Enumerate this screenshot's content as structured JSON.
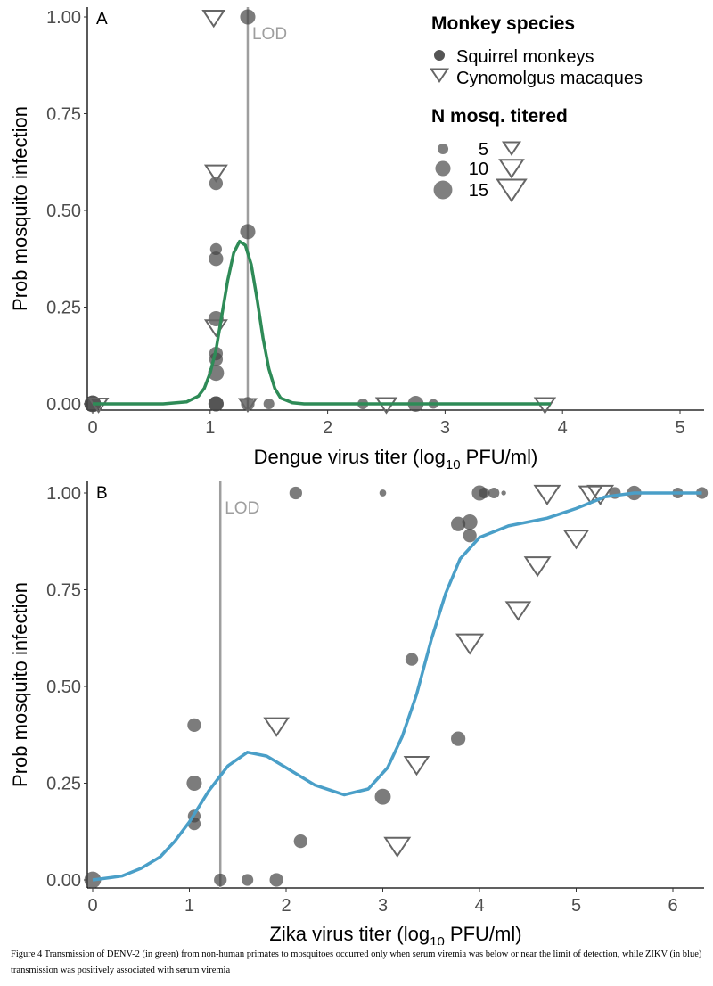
{
  "chart_data": [
    {
      "type": "scatter",
      "panel": "A",
      "xlabel": "Dengue virus titer (log",
      "xlabel_sub": "10",
      "xlabel_tail": " PFU/ml)",
      "ylabel": "Prob mosquito infection",
      "xlim": [
        0,
        5.3
      ],
      "ylim": [
        0,
        1
      ],
      "xticks": [
        0,
        1,
        2,
        3,
        4,
        5
      ],
      "xtick_labels": [
        "0",
        "1",
        "2",
        "3",
        "4",
        "5"
      ],
      "yticks": [
        0,
        0.25,
        0.5,
        0.75,
        1
      ],
      "ytick_labels": [
        "0.00",
        "0.25",
        "0.50",
        "0.75",
        "1.00"
      ],
      "lod": {
        "x": 1.32,
        "label": "LOD"
      },
      "curve_color": "#2e8b57",
      "curve": [
        [
          0,
          0
        ],
        [
          0.6,
          0
        ],
        [
          0.8,
          0.005
        ],
        [
          0.9,
          0.02
        ],
        [
          0.95,
          0.04
        ],
        [
          1.0,
          0.08
        ],
        [
          1.05,
          0.14
        ],
        [
          1.1,
          0.23
        ],
        [
          1.15,
          0.32
        ],
        [
          1.2,
          0.39
        ],
        [
          1.25,
          0.42
        ],
        [
          1.3,
          0.41
        ],
        [
          1.35,
          0.36
        ],
        [
          1.4,
          0.27
        ],
        [
          1.45,
          0.17
        ],
        [
          1.5,
          0.09
        ],
        [
          1.55,
          0.04
        ],
        [
          1.6,
          0.015
        ],
        [
          1.7,
          0.003
        ],
        [
          1.8,
          0
        ],
        [
          3.9,
          0
        ]
      ],
      "squirrel": [
        [
          1.32,
          1.0,
          10
        ],
        [
          1.05,
          0.57,
          8
        ],
        [
          1.32,
          0.445,
          10
        ],
        [
          1.05,
          0.4,
          6
        ],
        [
          1.05,
          0.375,
          9
        ],
        [
          1.05,
          0.22,
          10
        ],
        [
          1.05,
          0.13,
          8
        ],
        [
          1.05,
          0.115,
          8
        ],
        [
          1.05,
          0.08,
          11
        ],
        [
          1.05,
          0,
          10
        ],
        [
          1.05,
          0,
          10
        ],
        [
          1.32,
          0,
          8
        ],
        [
          1.5,
          0,
          5
        ],
        [
          2.3,
          0,
          5
        ],
        [
          2.75,
          0,
          11
        ],
        [
          2.9,
          0,
          4
        ],
        [
          0,
          0,
          12
        ],
        [
          0,
          0,
          12
        ]
      ],
      "cynomolgus": [
        [
          1.03,
          1.0,
          8
        ],
        [
          1.05,
          0.6,
          8
        ],
        [
          1.05,
          0.2,
          8
        ],
        [
          1.32,
          0,
          5
        ],
        [
          2.5,
          0,
          7
        ],
        [
          3.85,
          0,
          7
        ],
        [
          0.05,
          0,
          6
        ]
      ]
    },
    {
      "type": "scatter",
      "panel": "B",
      "xlabel": "Zika virus titer (log",
      "xlabel_sub": "10",
      "xlabel_tail": " PFU/ml)",
      "ylabel": "Prob mosquito infection",
      "xlim": [
        0,
        6.4
      ],
      "ylim": [
        0,
        1
      ],
      "xticks": [
        0,
        1,
        2,
        3,
        4,
        5,
        6
      ],
      "xtick_labels": [
        "0",
        "1",
        "2",
        "3",
        "4",
        "5",
        "6"
      ],
      "yticks": [
        0,
        0.25,
        0.5,
        0.75,
        1
      ],
      "ytick_labels": [
        "0.00",
        "0.25",
        "0.50",
        "0.75",
        "1.00"
      ],
      "lod": {
        "x": 1.32,
        "label": "LOD"
      },
      "curve_color": "#4a9fc8",
      "curve": [
        [
          0,
          0
        ],
        [
          0.3,
          0.01
        ],
        [
          0.5,
          0.03
        ],
        [
          0.7,
          0.06
        ],
        [
          0.85,
          0.1
        ],
        [
          1.0,
          0.15
        ],
        [
          1.2,
          0.23
        ],
        [
          1.4,
          0.295
        ],
        [
          1.6,
          0.33
        ],
        [
          1.8,
          0.32
        ],
        [
          2.0,
          0.29
        ],
        [
          2.3,
          0.245
        ],
        [
          2.6,
          0.22
        ],
        [
          2.85,
          0.235
        ],
        [
          3.05,
          0.29
        ],
        [
          3.2,
          0.37
        ],
        [
          3.35,
          0.48
        ],
        [
          3.5,
          0.62
        ],
        [
          3.65,
          0.74
        ],
        [
          3.8,
          0.83
        ],
        [
          4.0,
          0.885
        ],
        [
          4.3,
          0.915
        ],
        [
          4.7,
          0.935
        ],
        [
          5.0,
          0.96
        ],
        [
          5.3,
          0.99
        ],
        [
          5.6,
          1.0
        ],
        [
          6.3,
          1.0
        ]
      ],
      "squirrel": [
        [
          0,
          0,
          12
        ],
        [
          1.05,
          0.4,
          8
        ],
        [
          1.05,
          0.25,
          10
        ],
        [
          1.05,
          0.165,
          7
        ],
        [
          1.05,
          0.145,
          7
        ],
        [
          1.32,
          0,
          7
        ],
        [
          1.6,
          0,
          6
        ],
        [
          1.9,
          0,
          8
        ],
        [
          2.15,
          0.1,
          8
        ],
        [
          2.1,
          1.0,
          7
        ],
        [
          3.0,
          1.0,
          2
        ],
        [
          3.0,
          0.215,
          11
        ],
        [
          3.3,
          0.57,
          7
        ],
        [
          3.78,
          0.365,
          9
        ],
        [
          3.78,
          0.92,
          9
        ],
        [
          3.9,
          0.925,
          10
        ],
        [
          3.9,
          0.89,
          8
        ],
        [
          4.0,
          1.0,
          10
        ],
        [
          4.05,
          1.0,
          5
        ],
        [
          4.15,
          1.0,
          5
        ],
        [
          4.25,
          1.0,
          1
        ],
        [
          5.4,
          1.0,
          6
        ],
        [
          5.6,
          1.0,
          9
        ],
        [
          6.05,
          1.0,
          5
        ],
        [
          6.3,
          1.0,
          6
        ]
      ],
      "cynomolgus": [
        [
          1.9,
          0.4,
          10
        ],
        [
          3.15,
          0.09,
          11
        ],
        [
          3.35,
          0.3,
          10
        ],
        [
          3.9,
          0.615,
          12
        ],
        [
          4.4,
          0.7,
          10
        ],
        [
          4.6,
          0.815,
          11
        ],
        [
          4.7,
          1.0,
          11
        ],
        [
          5.0,
          0.885,
          10
        ],
        [
          5.15,
          1.0,
          9
        ],
        [
          5.25,
          1.0,
          11
        ]
      ]
    }
  ],
  "legend": {
    "species_title": "Monkey species",
    "species": [
      "Squirrel monkeys",
      "Cynomolgus macaques"
    ],
    "size_title": "N mosq. titered",
    "sizes": [
      5,
      10,
      15
    ],
    "size_labels": [
      "5",
      "10",
      "15"
    ],
    "point_color": "#555555"
  },
  "caption": "Figure 4 Transmission of DENV-2 (in green) from non-human primates to mosquitoes occurred only when serum viremia was below or near the limit of detection, while ZIKV (in blue) transmission was positively associated with serum viremia"
}
